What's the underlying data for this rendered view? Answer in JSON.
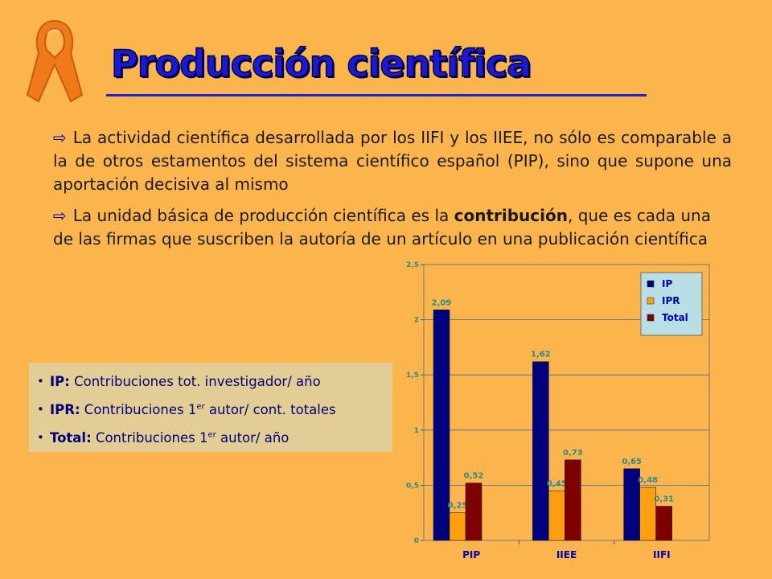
{
  "header": {
    "title": "Producción científica"
  },
  "paragraphs": [
    {
      "icon": "arrow-right-icon",
      "text": "La actividad científica desarrollada por los IIFI y los IIEE, no sólo es comparable a la de otros estamentos del sistema científico español (PIP), sino que supone una aportación decisiva al mismo"
    },
    {
      "icon": "arrow-right-icon",
      "before": "La unidad básica de producción científica es la ",
      "bold": "contribución",
      "after": ", que es cada una de las firmas que suscriben la autoría de un artículo en una publicación científica"
    }
  ],
  "definitions": [
    {
      "term": "IP:",
      "text": "Contribuciones tot. investigador/ año"
    },
    {
      "term": "IPR:",
      "text": "Contribuciones 1",
      "sup": "er",
      "rest": " autor/ cont. totales"
    },
    {
      "term": "Total:",
      "text": "Contribuciones 1",
      "sup": "er",
      "rest": " autor/ año"
    }
  ],
  "colors": {
    "background": "#FCB44C",
    "title": "#1A1AD6",
    "ip": "#00007F",
    "ipr": "#FF9F0F",
    "total": "#7F0000",
    "labels": "#2A8A8A"
  },
  "chart_data": {
    "type": "bar",
    "categories": [
      "PIP",
      "IIEE",
      "IIFI"
    ],
    "series": [
      {
        "name": "IP",
        "values": [
          2.09,
          1.62,
          0.65
        ],
        "labels": [
          "2,09",
          "1,62",
          "0,65"
        ]
      },
      {
        "name": "IPR",
        "values": [
          0.25,
          0.45,
          0.48
        ],
        "labels": [
          "0,25",
          "0,45",
          "0,48"
        ]
      },
      {
        "name": "Total",
        "values": [
          0.52,
          0.73,
          0.31
        ],
        "labels": [
          "0,52",
          "0,73",
          "0,31"
        ]
      }
    ],
    "yticks": [
      0,
      0.5,
      1,
      1.5,
      2,
      2.5
    ],
    "ytick_labels": [
      "0",
      "0,5",
      "1",
      "1,5",
      "2",
      "2,5"
    ],
    "ylim": [
      0,
      2.5
    ],
    "grid": true,
    "legend_position": "top-right",
    "title": "",
    "xlabel": "",
    "ylabel": ""
  }
}
